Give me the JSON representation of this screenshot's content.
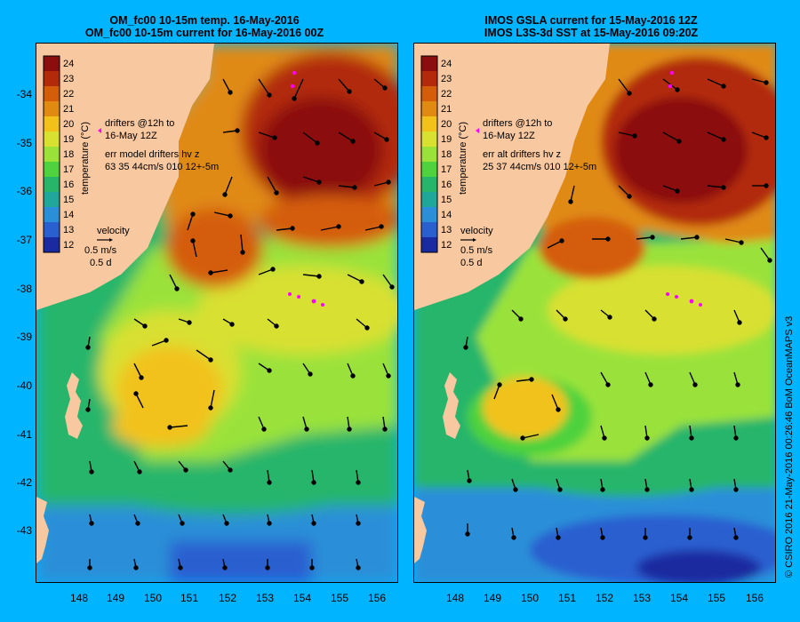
{
  "titles": {
    "left": [
      "OM_fc00 10-15m temp. 16-May-2016",
      "OM_fc00 10-15m current for 16-May-2016 00Z"
    ],
    "right": [
      "IMOS GSLA current for 15-May-2016 12Z",
      "IMOS L3S-3d SST at 15-May-2016 09:20Z"
    ]
  },
  "axes": {
    "lat_ticks": [
      "-34",
      "-35",
      "-36",
      "-37",
      "-38",
      "-39",
      "-40",
      "-41",
      "-42",
      "-43"
    ],
    "lon_ticks": [
      "148",
      "149",
      "150",
      "151",
      "152",
      "153",
      "154",
      "155",
      "156"
    ],
    "lat_range": [
      -44,
      -33.2
    ],
    "lon_range": [
      147.2,
      156.8
    ]
  },
  "colorbar": {
    "label": "temperature (°C)",
    "ticks": [
      "24",
      "23",
      "22",
      "21",
      "20",
      "19",
      "18",
      "17",
      "16",
      "15",
      "14",
      "13",
      "12"
    ],
    "colors": [
      "#8b0d0d",
      "#b22a0a",
      "#d45d0a",
      "#e08a12",
      "#f2c21a",
      "#d8e030",
      "#9ae23a",
      "#4ed23e",
      "#27b56a",
      "#1fa79a",
      "#2a8fd8",
      "#2a5fd0",
      "#1a2aa0"
    ]
  },
  "left_panel": {
    "drifters_line1": "drifters @12h to",
    "drifters_line2": "16-May 12Z",
    "err_line1": "err model drifters hv z",
    "err_line2": "63 35 44cm/s 010 12+-5m",
    "velocity_label": "velocity",
    "scale_speed": "0.5 m/s",
    "scale_time": "0.5 d"
  },
  "right_panel": {
    "drifters_line1": "drifters @12h to",
    "drifters_line2": "16-May 12Z",
    "err_line1": "err alt drifters hv z",
    "err_line2": "25 37 44cm/s 010 12+-5m",
    "velocity_label": "velocity",
    "scale_speed": "0.5 m/s",
    "scale_time": "0.5 d"
  },
  "colors": {
    "background": "#00b4ff",
    "land": "#f8c8a0",
    "drifter": "#ff00ff",
    "arrow": "#000000"
  },
  "copyright": "© CSIRO 2016   21-May-2016 00:26:46 BoM OceanMAPS v3"
}
